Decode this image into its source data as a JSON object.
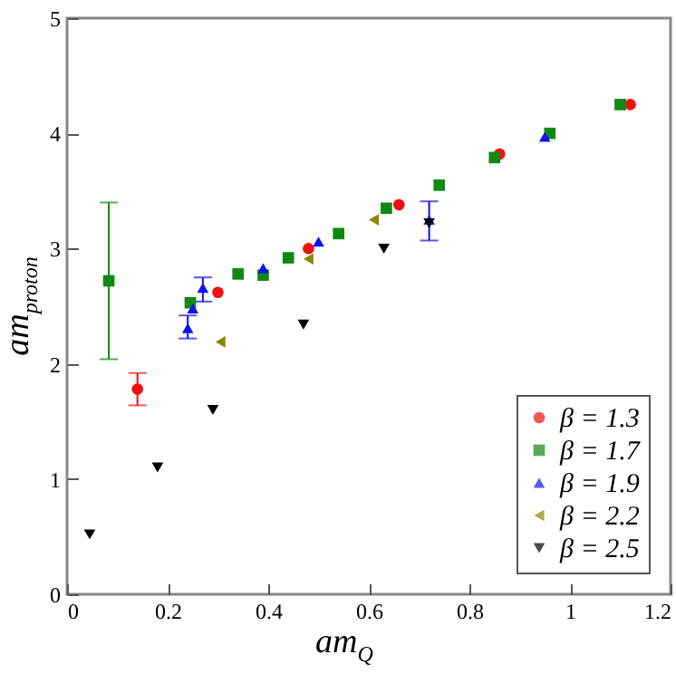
{
  "chart_data": {
    "type": "scatter",
    "xlabel": "am$_{Q}$",
    "ylabel": "am$_{proton}$",
    "xlim": [
      0,
      1.2
    ],
    "ylim": [
      0,
      5
    ],
    "xticks": [
      0,
      0.2,
      0.4,
      0.6,
      0.8,
      1,
      1.2
    ],
    "yticks": [
      0,
      1,
      2,
      3,
      4,
      5
    ],
    "legend": "bottom right",
    "grid": false,
    "series": [
      {
        "name": "β = 1.3",
        "color": "#ee1111",
        "marker": "circle",
        "x": [
          0.14,
          0.3,
          0.48,
          0.66,
          0.86,
          1.12
        ],
        "values": [
          1.78,
          2.62,
          3.0,
          3.38,
          3.82,
          4.25
        ],
        "errors": [
          [
            1.64,
            1.92
          ],
          null,
          null,
          null,
          null,
          null
        ]
      },
      {
        "name": "β = 1.7",
        "color": "#118811",
        "marker": "square",
        "x": [
          0.083,
          0.245,
          0.34,
          0.39,
          0.44,
          0.54,
          0.635,
          0.74,
          0.85,
          0.96,
          1.1
        ],
        "values": [
          2.72,
          2.53,
          2.78,
          2.77,
          2.92,
          3.13,
          3.35,
          3.55,
          3.79,
          4.0,
          4.25
        ],
        "errors": [
          [
            2.04,
            3.4
          ],
          null,
          null,
          null,
          null,
          null,
          null,
          null,
          null,
          null,
          null
        ]
      },
      {
        "name": "β = 1.9",
        "color": "#1111ee",
        "marker": "triangle-up",
        "x": [
          0.24,
          0.25,
          0.27,
          0.39,
          0.5,
          0.72,
          0.95
        ],
        "values": [
          2.31,
          2.48,
          2.66,
          2.83,
          3.06,
          3.25,
          3.97
        ],
        "errors": [
          [
            2.22,
            2.42
          ],
          null,
          [
            2.54,
            2.75
          ],
          null,
          null,
          [
            3.07,
            3.41
          ],
          null
        ]
      },
      {
        "name": "β = 2.2",
        "color": "#888800",
        "marker": "triangle-left",
        "x": [
          0.305,
          0.48,
          0.61
        ],
        "values": [
          2.19,
          2.91,
          3.25
        ]
      },
      {
        "name": "β = 2.5",
        "color": "#000000",
        "marker": "triangle-down",
        "x": [
          0.045,
          0.18,
          0.29,
          0.47,
          0.63,
          0.72
        ],
        "values": [
          0.52,
          1.1,
          1.6,
          2.34,
          3.0,
          3.22
        ]
      }
    ]
  }
}
